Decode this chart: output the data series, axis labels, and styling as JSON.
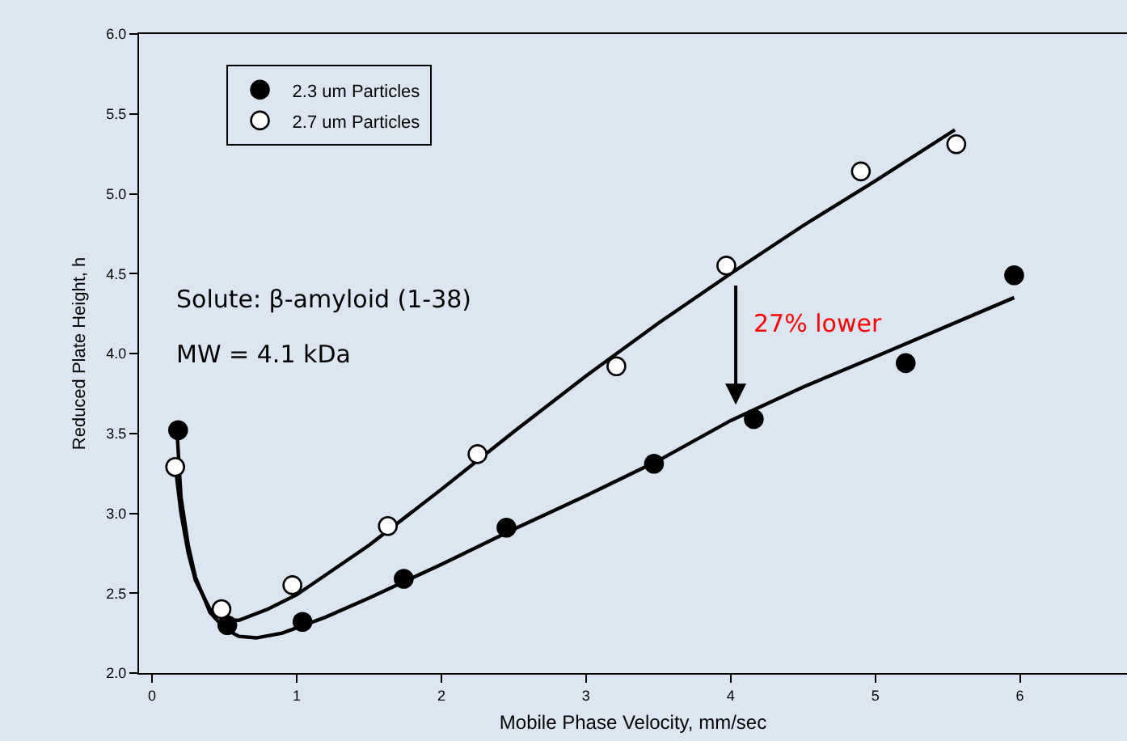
{
  "chart_data": {
    "type": "scatter",
    "xlabel": "Mobile Phase Velocity, mm/sec",
    "ylabel": "Reduced Plate Height, h",
    "series": [
      {
        "name": "2.3 um Particles",
        "color": "#000000",
        "marker": "circle",
        "x": [
          0.18,
          0.52,
          1.04,
          1.74,
          2.45,
          3.47,
          4.16,
          5.21,
          5.96
        ],
        "values": [
          3.52,
          2.3,
          2.32,
          2.59,
          2.91,
          3.31,
          3.59,
          3.94,
          4.49
        ]
      },
      {
        "name": "2.7 um Particles",
        "color": "#ffffff",
        "marker": "circle",
        "x": [
          0.16,
          0.48,
          0.97,
          1.63,
          2.25,
          3.21,
          3.97,
          4.9,
          5.56
        ],
        "values": [
          3.29,
          2.4,
          2.55,
          2.92,
          3.37,
          3.92,
          4.55,
          5.14,
          5.31
        ]
      },
      {
        "type": "line",
        "color": "#000000",
        "line_style": "solid",
        "x": [
          0.17,
          0.2,
          0.25,
          0.3,
          0.4,
          0.5,
          0.6,
          0.72,
          0.9,
          1.2,
          1.5,
          2,
          2.5,
          3,
          3.5,
          4,
          4.5,
          5,
          5.96
        ],
        "values": [
          3.55,
          3.1,
          2.8,
          2.6,
          2.38,
          2.28,
          2.23,
          2.22,
          2.25,
          2.35,
          2.47,
          2.68,
          2.9,
          3.11,
          3.33,
          3.58,
          3.79,
          3.98,
          4.35
        ]
      },
      {
        "type": "line",
        "color": "#000000",
        "line_style": "solid",
        "x": [
          0.16,
          0.2,
          0.25,
          0.3,
          0.4,
          0.5,
          0.6,
          0.8,
          1,
          1.5,
          2,
          2.5,
          3,
          3.5,
          4,
          4.5,
          5,
          5.55
        ],
        "values": [
          3.3,
          3.0,
          2.75,
          2.58,
          2.4,
          2.33,
          2.33,
          2.4,
          2.49,
          2.8,
          3.15,
          3.51,
          3.86,
          4.19,
          4.5,
          4.8,
          5.08,
          5.4
        ]
      }
    ],
    "xlim": [
      -0.09,
      6.74
    ],
    "xticks": [
      0,
      1,
      2,
      3,
      4,
      5,
      6
    ],
    "ylim": [
      2,
      6
    ],
    "yticks": [
      {
        "value": 2,
        "label": "2.0"
      },
      {
        "value": 2.5,
        "label": "2.5"
      },
      {
        "value": 3,
        "label": "3.0"
      },
      {
        "value": 3.5,
        "label": "3.5"
      },
      {
        "value": 4,
        "label": "4.0"
      },
      {
        "value": 4.5,
        "label": "4.5"
      },
      {
        "value": 5,
        "label": "5.0"
      },
      {
        "value": 5.5,
        "label": "5.5"
      },
      {
        "value": 6,
        "label": "6.0"
      }
    ],
    "annotations": [
      "Solute: β-amyloid (1-38)",
      "MW = 4.1 kDa",
      "27% lower"
    ],
    "grid": false,
    "legend": "top left"
  }
}
